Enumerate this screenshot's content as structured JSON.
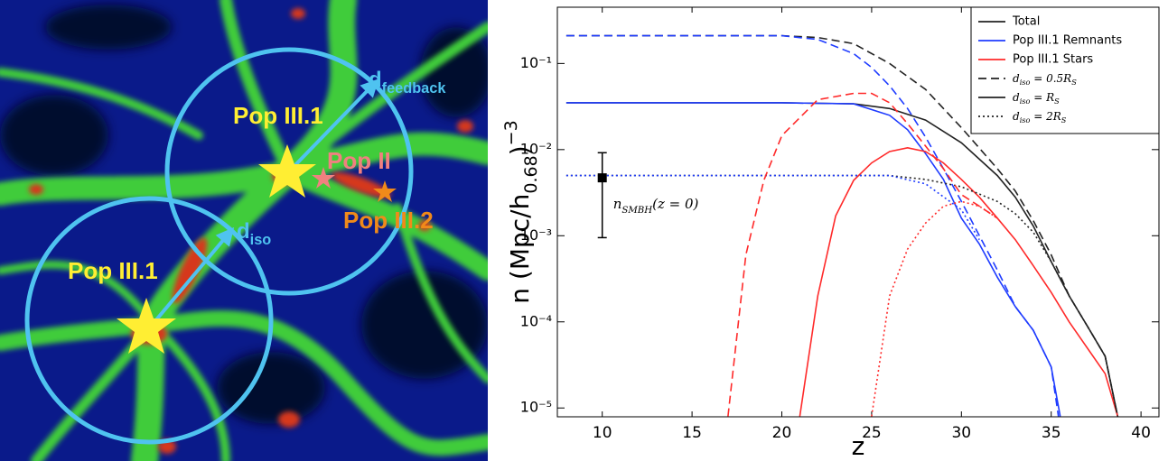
{
  "image_panel": {
    "labels": [
      {
        "id": "pop31-upper",
        "text": [
          [
            "Pop III.1",
            ""
          ]
        ]
      },
      {
        "id": "d-feedback",
        "text": [
          [
            "d",
            ""
          ],
          [
            "feedback",
            "sub"
          ]
        ]
      },
      {
        "id": "pop2",
        "text": [
          [
            "Pop II",
            ""
          ]
        ]
      },
      {
        "id": "pop32",
        "text": [
          [
            "Pop III.2",
            ""
          ]
        ]
      },
      {
        "id": "d-iso",
        "text": [
          [
            "d",
            ""
          ],
          [
            "iso",
            "sub"
          ]
        ]
      },
      {
        "id": "pop31-lower",
        "text": [
          [
            "Pop III.1",
            ""
          ]
        ]
      }
    ]
  },
  "chart_data": {
    "type": "line",
    "log_y": true,
    "xlabel": "z",
    "ylabel": [
      [
        "n (Mpc/h",
        ""
      ],
      [
        "0.68",
        "sub"
      ],
      [
        ")",
        ""
      ],
      [
        "−3",
        "sup"
      ]
    ],
    "xlim": [
      7.5,
      41
    ],
    "ylim": [
      7.9e-06,
      0.45
    ],
    "xticks": [
      10,
      15,
      20,
      25,
      30,
      35,
      40
    ],
    "yticks": [
      {
        "value": 1e-05,
        "label": "10⁻⁵"
      },
      {
        "value": 0.0001,
        "label": "10⁻⁴"
      },
      {
        "value": 0.001,
        "label": "10⁻³"
      },
      {
        "value": 0.01,
        "label": "10⁻²"
      },
      {
        "value": 0.1,
        "label": "10⁻¹"
      }
    ],
    "legend": "upper right",
    "series": [
      {
        "name": "Total",
        "color": "#222222",
        "dash": "solid",
        "x": [
          8,
          10,
          20,
          24,
          26,
          28,
          30,
          32,
          33,
          34,
          35,
          36,
          37,
          38,
          38.7
        ],
        "values": [
          0.035,
          0.035,
          0.035,
          0.034,
          0.03,
          0.022,
          0.012,
          0.005,
          0.0028,
          0.0013,
          0.0005,
          0.0002,
          9e-05,
          4e-05,
          8e-06
        ]
      },
      {
        "name": "Pop III.1 Remnants",
        "color": "#1f3cff",
        "dash": "solid",
        "x": [
          8,
          10,
          20,
          24,
          26,
          27,
          28,
          29,
          30,
          31,
          32,
          33,
          34,
          35,
          35.5
        ],
        "values": [
          0.035,
          0.035,
          0.035,
          0.034,
          0.025,
          0.017,
          0.009,
          0.0045,
          0.0016,
          0.0008,
          0.00033,
          0.00015,
          8e-05,
          3e-05,
          8e-06
        ]
      },
      {
        "name": "Pop III.1 Stars",
        "color": "#ff2a2a",
        "dash": "solid",
        "x": [
          21,
          22,
          23,
          24,
          25,
          26,
          27,
          28,
          29,
          30,
          31,
          32,
          33,
          34,
          35,
          36,
          37,
          38,
          38.7
        ],
        "values": [
          8e-06,
          0.0002,
          0.0017,
          0.0044,
          0.007,
          0.0095,
          0.0105,
          0.0095,
          0.007,
          0.0045,
          0.0028,
          0.0016,
          0.0009,
          0.00045,
          0.00022,
          0.0001,
          5e-05,
          2.5e-05,
          8e-06
        ]
      },
      {
        "color": "#222222",
        "dash": "dashed",
        "x": [
          8,
          10,
          20,
          22,
          24,
          26,
          28,
          30,
          32,
          33,
          34,
          35,
          36,
          37,
          38,
          38.7
        ],
        "values": [
          0.21,
          0.21,
          0.21,
          0.2,
          0.17,
          0.1,
          0.05,
          0.018,
          0.006,
          0.0033,
          0.0015,
          0.0006,
          0.0002,
          9e-05,
          4e-05,
          8e-06
        ]
      },
      {
        "color": "#222222",
        "dash": "dotted",
        "x": [
          8,
          10,
          26,
          28,
          30,
          32,
          33,
          34,
          35,
          36,
          37,
          38,
          38.7
        ],
        "values": [
          0.005,
          0.005,
          0.005,
          0.0045,
          0.0037,
          0.0025,
          0.0018,
          0.0011,
          0.0005,
          0.0002,
          9e-05,
          4e-05,
          8e-06
        ]
      },
      {
        "color": "#1f3cff",
        "dash": "dashed",
        "x": [
          8,
          10,
          20,
          22,
          24,
          25,
          26,
          27,
          28,
          29,
          30,
          31,
          32,
          33,
          34,
          35,
          35.4
        ],
        "values": [
          0.21,
          0.21,
          0.21,
          0.19,
          0.13,
          0.09,
          0.055,
          0.03,
          0.014,
          0.006,
          0.0025,
          0.001,
          0.0004,
          0.00015,
          8e-05,
          3e-05,
          8e-06
        ]
      },
      {
        "color": "#1f3cff",
        "dash": "dotted",
        "x": [
          8,
          10,
          26,
          28,
          30,
          31
        ],
        "values": [
          0.005,
          0.005,
          0.005,
          0.004,
          0.002,
          0.0009
        ]
      },
      {
        "color": "#ff2a2a",
        "dash": "dashed",
        "x": [
          17,
          18,
          19,
          20,
          22,
          24,
          25,
          26,
          27,
          28,
          29,
          30,
          31,
          32
        ],
        "values": [
          8e-06,
          0.0006,
          0.0044,
          0.0145,
          0.038,
          0.045,
          0.045,
          0.035,
          0.02,
          0.011,
          0.006,
          0.003,
          0.0022,
          0.0016
        ]
      },
      {
        "color": "#ff2a2a",
        "dash": "dotted",
        "x": [
          25,
          26,
          27,
          28,
          29,
          30,
          31,
          32
        ],
        "values": [
          8e-06,
          0.0002,
          0.0007,
          0.0014,
          0.0022,
          0.0025,
          0.0022,
          0.0016
        ]
      }
    ],
    "linestyle_legend": [
      {
        "dash": "dashed",
        "label": [
          [
            "d",
            ""
          ],
          [
            "iso",
            "sub"
          ],
          [
            " = 0.5R",
            ""
          ],
          [
            "S",
            "sub"
          ]
        ]
      },
      {
        "dash": "solid",
        "label": [
          [
            "d",
            ""
          ],
          [
            "iso",
            "sub"
          ],
          [
            " = R",
            ""
          ],
          [
            "S",
            "sub"
          ]
        ]
      },
      {
        "dash": "dotted",
        "label": [
          [
            "d",
            ""
          ],
          [
            "iso",
            "sub"
          ],
          [
            " = 2R",
            ""
          ],
          [
            "S",
            "sub"
          ]
        ]
      }
    ],
    "errorbar": {
      "x": 10,
      "value": 0.0047,
      "lower": 0.00095,
      "upper": 0.0092,
      "label": [
        [
          "n",
          ""
        ],
        [
          "SMBH",
          "sub"
        ],
        [
          "(z = 0)",
          ""
        ]
      ]
    }
  }
}
